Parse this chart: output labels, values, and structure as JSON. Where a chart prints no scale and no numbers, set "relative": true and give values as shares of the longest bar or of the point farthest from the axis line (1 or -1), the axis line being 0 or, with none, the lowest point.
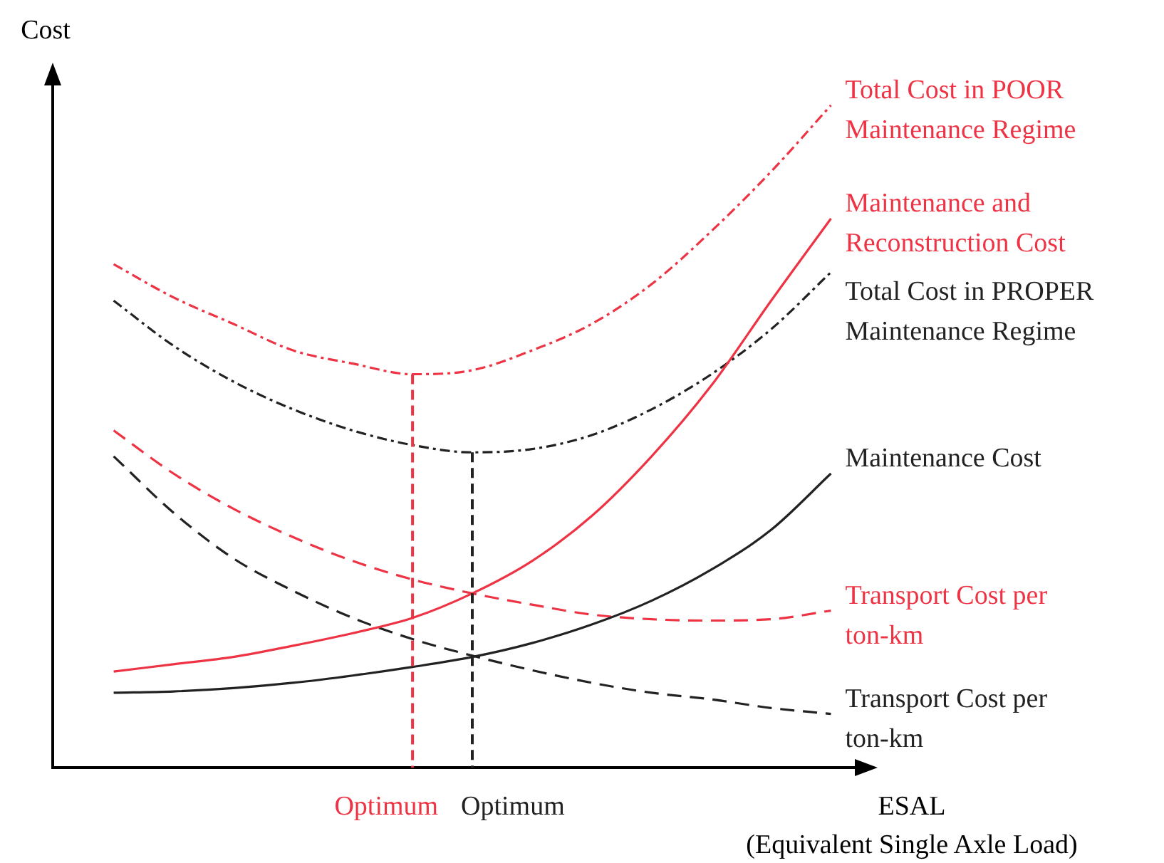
{
  "chart_data": {
    "type": "line",
    "relative": true,
    "xlabel": "ESAL\n(Equivalent Single Axle Load)",
    "ylabel": "Cost",
    "legend": false,
    "marker": "none",
    "categories": [
      null,
      null,
      null,
      null,
      null,
      null,
      null,
      null,
      null,
      null,
      null,
      null,
      null
    ],
    "series": [
      {
        "name": "Total Cost in POOR Maintenance Regime",
        "color": "#ee3344",
        "line_style": "dotted",
        "values": [
          0.76,
          0.71,
          0.67,
          0.63,
          0.61,
          0.594,
          0.6,
          0.63,
          0.67,
          0.73,
          0.81,
          0.9,
          1
        ]
      },
      {
        "name": "Maintenance and Reconstruction Cost",
        "color": "#ee3344",
        "line_style": "solid",
        "values": [
          0.145,
          0.156,
          0.167,
          0.184,
          0.203,
          0.226,
          0.263,
          0.312,
          0.38,
          0.47,
          0.577,
          0.705,
          0.829
        ]
      },
      {
        "name": "Total Cost in PROPER Maintenance Regime",
        "color": "#222222",
        "line_style": "dotted",
        "values": [
          0.705,
          0.637,
          0.583,
          0.541,
          0.509,
          0.487,
          0.476,
          0.481,
          0.502,
          0.541,
          0.594,
          0.662,
          0.748
        ]
      },
      {
        "name": "Maintenance Cost",
        "color": "#222222",
        "line_style": "solid",
        "values": [
          0.113,
          0.115,
          0.12,
          0.128,
          0.139,
          0.152,
          0.167,
          0.188,
          0.216,
          0.252,
          0.299,
          0.359,
          0.444
        ]
      },
      {
        "name": "Transport Cost per ton-km",
        "color": "#ee3344",
        "line_style": "dashed",
        "values": [
          0.509,
          0.444,
          0.391,
          0.348,
          0.312,
          0.284,
          0.263,
          0.246,
          0.231,
          0.224,
          0.222,
          0.224,
          0.237
        ]
      },
      {
        "name": "Transport Cost per ton-km",
        "color": "#222222",
        "line_style": "dashed",
        "values": [
          0.47,
          0.385,
          0.316,
          0.267,
          0.226,
          0.194,
          0.169,
          0.147,
          0.128,
          0.113,
          0.103,
          0.09,
          0.081
        ]
      }
    ],
    "annotations": [
      "Optimum",
      null,
      "Optimum"
    ]
  }
}
